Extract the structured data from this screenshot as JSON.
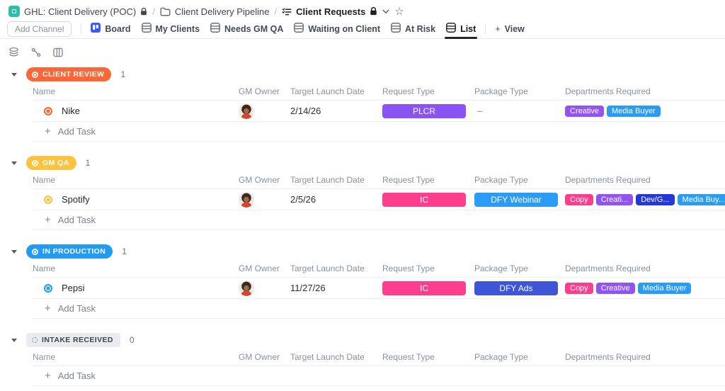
{
  "breadcrumb": {
    "space_name": "GHL: Client Delivery (POC)",
    "separator": "/",
    "folder_name": "Client Delivery Pipeline",
    "list_name": "Client Requests"
  },
  "header": {
    "add_channel_label": "Add Channel",
    "add_view_label": "View",
    "plus_glyph": "+",
    "star_glyph": "☆"
  },
  "icons": {
    "toolbar": [
      "group-by-icon",
      "relationships-icon",
      "columns-icon"
    ],
    "breadcrumb": [
      "space-icon",
      "lock-icon",
      "folder-icon",
      "list-check-icon",
      "lock-icon",
      "chevron-down-icon",
      "star-icon"
    ]
  },
  "tabs": [
    {
      "label": "Board",
      "type": "board",
      "active": false
    },
    {
      "label": "My Clients",
      "type": "table",
      "active": false
    },
    {
      "label": "Needs GM QA",
      "type": "table",
      "active": false
    },
    {
      "label": "Waiting on Client",
      "type": "table",
      "active": false
    },
    {
      "label": "At Risk",
      "type": "table",
      "active": false
    },
    {
      "label": "List",
      "type": "table",
      "active": true
    }
  ],
  "columns": [
    "Name",
    "GM Owner",
    "Target Launch Date",
    "Request Type",
    "Package Type",
    "Departments Required"
  ],
  "add_task_label": "Add Task",
  "groups": [
    {
      "name": "CLIENT REVIEW",
      "count": "1",
      "color": "#fc6737",
      "text_color": "#ffffff",
      "dashed": false,
      "tasks": [
        {
          "name": "Nike",
          "status_color": "#fc6737",
          "date": "2/14/26",
          "request_type": {
            "label": "PLCR",
            "color": "#8a53f4"
          },
          "package_type": {
            "label": "–",
            "color": null
          },
          "departments": [
            {
              "label": "Creative",
              "color": "#9154f2"
            },
            {
              "label": "Media Buyer",
              "color": "#2a9cf5"
            }
          ]
        }
      ]
    },
    {
      "name": "GM QA",
      "count": "1",
      "color": "#fcc240",
      "text_color": "#ffffff",
      "dashed": false,
      "tasks": [
        {
          "name": "Spotify",
          "status_color": "#fcc240",
          "date": "2/5/26",
          "request_type": {
            "label": "IC",
            "color": "#fc3e8d"
          },
          "package_type": {
            "label": "DFY Webinar",
            "color": "#2a9cf5"
          },
          "departments": [
            {
              "label": "Copy",
              "color": "#fc3e8d"
            },
            {
              "label": "Creati...",
              "color": "#9154f2"
            },
            {
              "label": "Dev/G...",
              "color": "#2438d8"
            },
            {
              "label": "Media Buy...",
              "color": "#2a9cf5"
            }
          ]
        }
      ]
    },
    {
      "name": "IN PRODUCTION",
      "count": "1",
      "color": "#219bf3",
      "text_color": "#ffffff",
      "dashed": false,
      "tasks": [
        {
          "name": "Pepsi",
          "status_color": "#219bf3",
          "date": "11/27/26",
          "request_type": {
            "label": "IC",
            "color": "#fc3e8d"
          },
          "package_type": {
            "label": "DFY Ads",
            "color": "#3e55d7"
          },
          "departments": [
            {
              "label": "Copy",
              "color": "#fc3e8d"
            },
            {
              "label": "Creative",
              "color": "#9154f2"
            },
            {
              "label": "Media Buyer",
              "color": "#2a9cf5"
            }
          ]
        }
      ]
    },
    {
      "name": "INTAKE RECEIVED",
      "count": "0",
      "color": "#e9ebef",
      "text_color": "#40454e",
      "dashed": true,
      "tasks": []
    }
  ]
}
